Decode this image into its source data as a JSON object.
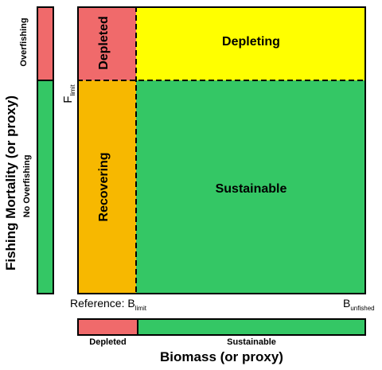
{
  "left_axis": {
    "title": "Fishing Mortality (or proxy)",
    "overfishing_label": "Overfishing",
    "no_overfishing_label": "No Overfishing"
  },
  "f_limit": {
    "main": "F",
    "sub": "limit"
  },
  "quadrants": {
    "depleted": "Depleted",
    "depleting": "Depleting",
    "recovering": "Recovering",
    "sustainable": "Sustainable"
  },
  "reference": {
    "label": "Reference:",
    "b_limit_main": "B",
    "b_limit_sub": "limit",
    "b_unfished_main": "B",
    "b_unfished_sub": "unfished"
  },
  "bottom_axis": {
    "title": "Biomass (or proxy)",
    "depleted_label": "Depleted",
    "sustainable_label": "Sustainable"
  },
  "colors": {
    "red": "#f06a6b",
    "green": "#34c765",
    "yellow": "#ffff00",
    "orange": "#f7b800"
  }
}
